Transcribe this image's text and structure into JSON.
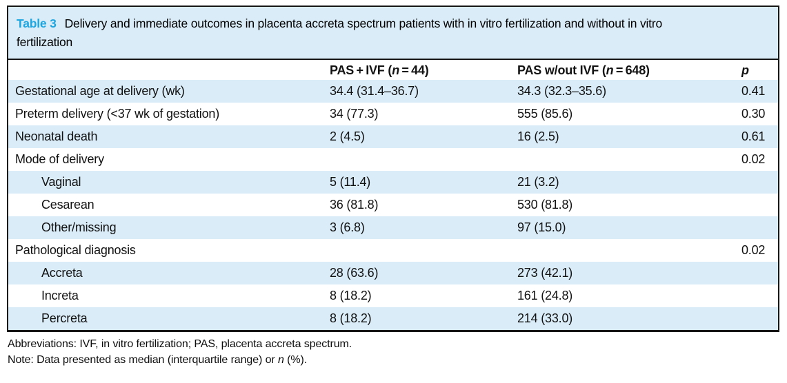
{
  "colors": {
    "accent_blue": "#1ea6e0",
    "shade_blue": "#d9ecf8",
    "border_dark": "#161616"
  },
  "table": {
    "label": "Table 3",
    "title_line1": "Delivery and immediate outcomes in placenta accreta spectrum patients with in vitro fertilization and without in vitro",
    "title_line2": "fertilization",
    "header": {
      "stub": "",
      "ivf": {
        "prefix": "PAS + IVF (",
        "n": "n",
        "suffix": " = 44)"
      },
      "no_ivf": {
        "prefix": "PAS w/out IVF (",
        "n": "n",
        "suffix": " = 648)"
      },
      "p": "p"
    },
    "rows": [
      {
        "label": "Gestational age at delivery (wk)",
        "ivf": "34.4 (31.4–36.7)",
        "no_ivf": "34.3 (32.3–35.6)",
        "p": "0.41"
      },
      {
        "label": "Preterm delivery (<37 wk of gestation)",
        "ivf": "34 (77.3)",
        "no_ivf": "555 (85.6)",
        "p": "0.30"
      },
      {
        "label": "Neonatal death",
        "ivf": "2 (4.5)",
        "no_ivf": "16 (2.5)",
        "p": "0.61"
      },
      {
        "label": "Mode of delivery",
        "ivf": "",
        "no_ivf": "",
        "p": "0.02"
      },
      {
        "label": "Vaginal",
        "ivf": "5 (11.4)",
        "no_ivf": "21 (3.2)",
        "p": ""
      },
      {
        "label": "Cesarean",
        "ivf": "36 (81.8)",
        "no_ivf": "530 (81.8)",
        "p": ""
      },
      {
        "label": "Other/missing",
        "ivf": "3 (6.8)",
        "no_ivf": "97 (15.0)",
        "p": ""
      },
      {
        "label": "Pathological diagnosis",
        "ivf": "",
        "no_ivf": "",
        "p": "0.02"
      },
      {
        "label": "Accreta",
        "ivf": "28 (63.6)",
        "no_ivf": "273 (42.1)",
        "p": ""
      },
      {
        "label": "Increta",
        "ivf": "8 (18.2)",
        "no_ivf": "161 (24.8)",
        "p": ""
      },
      {
        "label": "Percreta",
        "ivf": "8 (18.2)",
        "no_ivf": "214 (33.0)",
        "p": ""
      }
    ]
  },
  "footnotes": {
    "abbreviations": "Abbreviations: IVF, in vitro fertilization; PAS, placenta accreta spectrum.",
    "note_prefix": "Note: Data presented as median (interquartile range) or ",
    "note_n": "n",
    "note_suffix": " (%)."
  }
}
